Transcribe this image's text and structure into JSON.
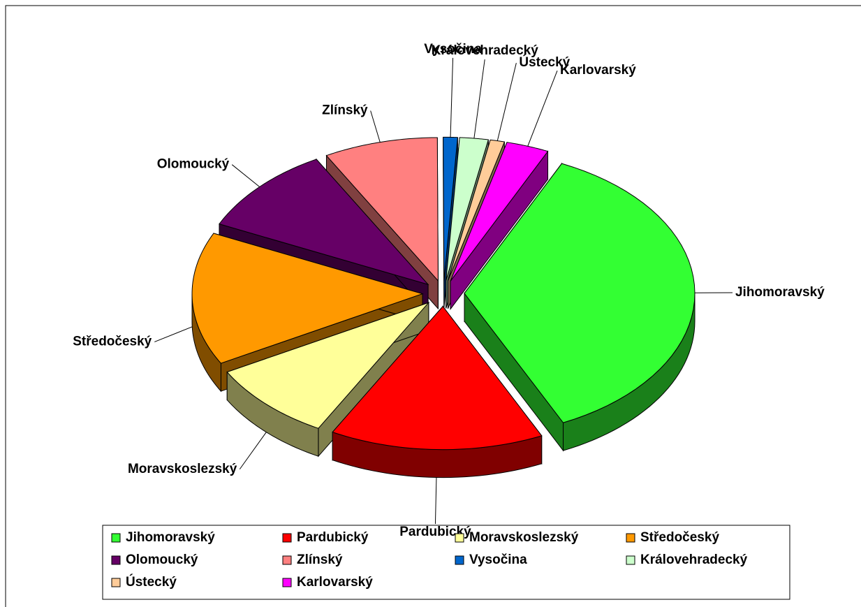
{
  "chart_data": {
    "type": "pie3d",
    "categories": [
      "Jihomoravský",
      "Pardubický",
      "Moravskoslezský",
      "Středočeský",
      "Olomoucký",
      "Zlínský",
      "Vysočina",
      "Královehradecký",
      "Ústecký",
      "Karlovarský"
    ],
    "values": [
      36,
      15,
      9,
      15,
      10,
      8,
      1,
      2,
      1,
      3
    ],
    "colors": [
      "#33ff33",
      "#ff0000",
      "#ffff99",
      "#ff9900",
      "#660066",
      "#ff8080",
      "#0066cc",
      "#ccffcc",
      "#ffcc99",
      "#ff00ff"
    ],
    "legend": "bottom"
  }
}
